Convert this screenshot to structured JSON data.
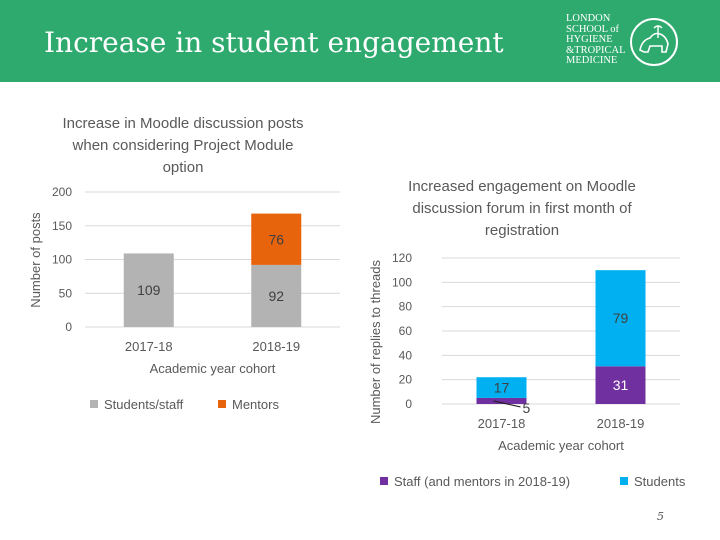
{
  "header": {
    "title": "Increase in student engagement",
    "logo_lines": [
      "LONDON",
      "SCHOOL of",
      "HYGIENE",
      "&TROPICAL",
      "MEDICINE"
    ]
  },
  "page_number": "5",
  "colors": {
    "header_bg": "#2eaa6e",
    "gray": "#b3b3b3",
    "orange": "#e8640c",
    "purple": "#7030a0",
    "blue": "#00b0f0"
  },
  "chart_data": [
    {
      "type": "bar",
      "stacked": true,
      "title_lines": [
        "Increase in Moodle discussion posts",
        "when considering Project Module",
        "option"
      ],
      "xlabel": "Academic year cohort",
      "ylabel": "Number of posts",
      "categories": [
        "2017-18",
        "2018-19"
      ],
      "ylim": [
        0,
        200
      ],
      "yticks": [
        0,
        50,
        100,
        150,
        200
      ],
      "grid": true,
      "series": [
        {
          "name": "Students/staff",
          "color": "#b3b3b3",
          "values": [
            109,
            92
          ],
          "labels": [
            "109",
            "92"
          ]
        },
        {
          "name": "Mentors",
          "color": "#e8640c",
          "values": [
            0,
            76
          ],
          "labels": [
            "",
            "76"
          ]
        }
      ],
      "legend": "bottom"
    },
    {
      "type": "bar",
      "stacked": true,
      "title_lines": [
        "Increased engagement on Moodle",
        "discussion forum in first month of",
        "registration"
      ],
      "xlabel": "Academic year cohort",
      "ylabel": "Number of replies to threads",
      "categories": [
        "2017-18",
        "2018-19"
      ],
      "ylim": [
        0,
        120
      ],
      "yticks": [
        0,
        20,
        40,
        60,
        80,
        100,
        120
      ],
      "grid": true,
      "series": [
        {
          "name": "Staff (and mentors in 2018-19)",
          "color": "#7030a0",
          "values": [
            5,
            31
          ],
          "labels": [
            "5",
            "31"
          ]
        },
        {
          "name": "Students",
          "color": "#00b0f0",
          "values": [
            17,
            79
          ],
          "labels": [
            "17",
            "79"
          ]
        }
      ],
      "legend": "bottom"
    }
  ]
}
